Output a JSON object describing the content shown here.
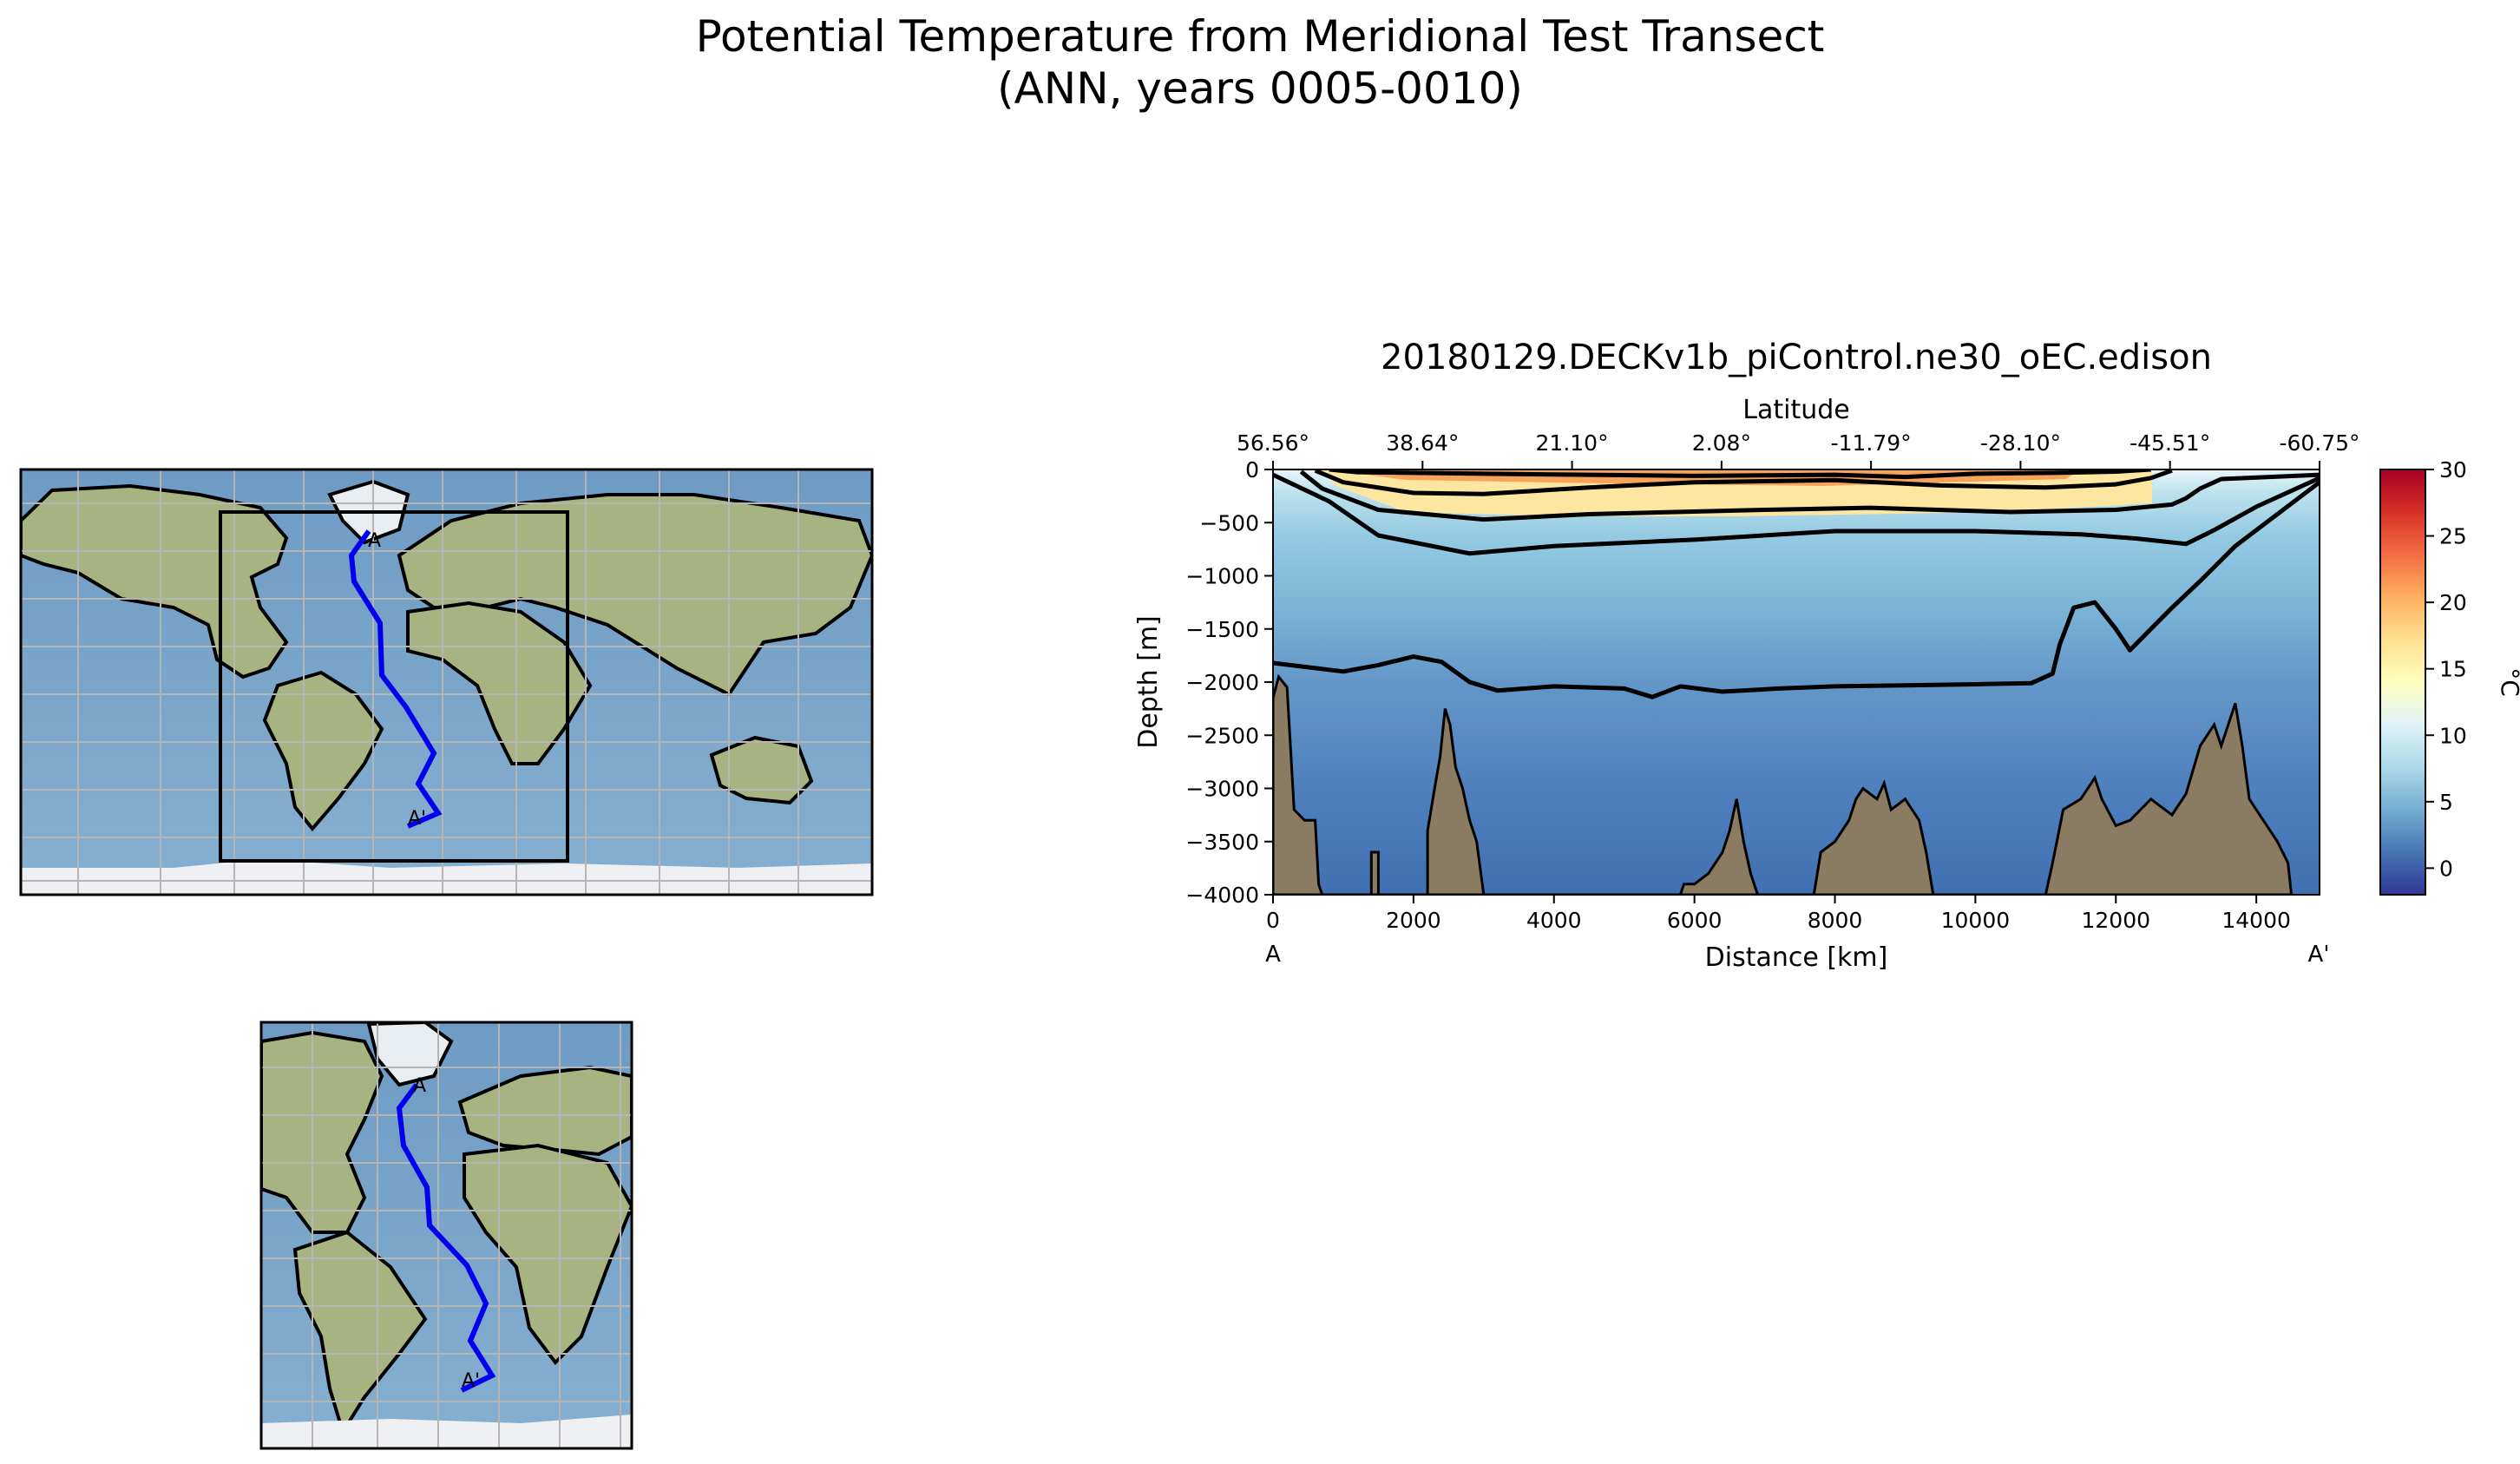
{
  "figure": {
    "title_line1": "Potential Temperature from Meridional Test Transect",
    "title_line2": "(ANN, years 0005-0010)"
  },
  "maps": {
    "global_map": {
      "label_start": "A",
      "label_end": "A'"
    },
    "inset_map": {
      "label_start": "A",
      "label_end": "A'"
    },
    "transect_color": "#0000ee",
    "ocean_color": "#7ea7c9",
    "land_color": "#9fae7e"
  },
  "chart_data": {
    "type": "heatmap",
    "title": "20180129.DECKv1b_piControl.ne30_oEC.edison",
    "xlabel": "Distance [km]",
    "ylabel": "Depth [m]",
    "top_axis_label": "Latitude",
    "xlim": [
      0,
      14900
    ],
    "ylim": [
      -4000,
      0
    ],
    "x_ticks": [
      0,
      2000,
      4000,
      6000,
      8000,
      10000,
      12000,
      14000
    ],
    "x_tick_labels": [
      "0",
      "2000",
      "4000",
      "6000",
      "8000",
      "10000",
      "12000",
      "14000"
    ],
    "y_ticks": [
      0,
      -500,
      -1000,
      -1500,
      -2000,
      -2500,
      -3000,
      -3500,
      -4000
    ],
    "y_tick_labels": [
      "0",
      "−500",
      "−1000",
      "−1500",
      "−2000",
      "−2500",
      "−3000",
      "−3500",
      "−4000"
    ],
    "top_ticks": [
      0,
      2129,
      4257,
      6386,
      8514,
      10643,
      12771,
      14900
    ],
    "top_tick_labels": [
      "56.56°",
      "38.64°",
      "21.10°",
      "2.08°",
      "-11.79°",
      "-28.10°",
      "-45.51°",
      "-60.75°"
    ],
    "endpoint_labels": {
      "start": "A",
      "end": "A'"
    },
    "colorbar": {
      "label": "°C",
      "vmin": -2,
      "vmax": 30,
      "ticks": [
        0,
        5,
        10,
        15,
        20,
        25,
        30
      ],
      "tick_labels": [
        "0",
        "5",
        "10",
        "15",
        "20",
        "25",
        "30"
      ],
      "colormap": [
        "#313695",
        "#4575b4",
        "#74add1",
        "#abd9e9",
        "#e0f3f8",
        "#ffffbf",
        "#fee090",
        "#fdae61",
        "#f46d43",
        "#d73027",
        "#a50026"
      ]
    },
    "contours": [
      {
        "level": 20,
        "points": [
          [
            800,
            0
          ],
          [
            1200,
            -25
          ],
          [
            3000,
            -40
          ],
          [
            6000,
            -60
          ],
          [
            8000,
            -50
          ],
          [
            9000,
            -70
          ],
          [
            10000,
            -40
          ],
          [
            11200,
            -30
          ],
          [
            12000,
            -20
          ],
          [
            12500,
            0
          ]
        ]
      },
      {
        "level": 15,
        "points": [
          [
            600,
            -10
          ],
          [
            1000,
            -120
          ],
          [
            2000,
            -220
          ],
          [
            3000,
            -230
          ],
          [
            4500,
            -170
          ],
          [
            6000,
            -120
          ],
          [
            8000,
            -100
          ],
          [
            9500,
            -150
          ],
          [
            11000,
            -170
          ],
          [
            12000,
            -140
          ],
          [
            12500,
            -80
          ],
          [
            12800,
            -10
          ]
        ]
      },
      {
        "level": 10,
        "points": [
          [
            400,
            -20
          ],
          [
            700,
            -180
          ],
          [
            1500,
            -380
          ],
          [
            3000,
            -470
          ],
          [
            4500,
            -420
          ],
          [
            7000,
            -380
          ],
          [
            8500,
            -360
          ],
          [
            10500,
            -400
          ],
          [
            12000,
            -380
          ],
          [
            12800,
            -330
          ],
          [
            13000,
            -270
          ],
          [
            13200,
            -180
          ],
          [
            13500,
            -90
          ],
          [
            14900,
            -50
          ]
        ]
      },
      {
        "level": 5,
        "points": [
          [
            0,
            -50
          ],
          [
            800,
            -300
          ],
          [
            1500,
            -620
          ],
          [
            2800,
            -790
          ],
          [
            4000,
            -720
          ],
          [
            6000,
            -660
          ],
          [
            8000,
            -580
          ],
          [
            10000,
            -580
          ],
          [
            11500,
            -610
          ],
          [
            12300,
            -650
          ],
          [
            13000,
            -700
          ],
          [
            13400,
            -570
          ],
          [
            14000,
            -350
          ],
          [
            14900,
            -80
          ]
        ]
      },
      {
        "level": 3,
        "points": [
          [
            0,
            -1820
          ],
          [
            500,
            -1860
          ],
          [
            1000,
            -1900
          ],
          [
            1500,
            -1840
          ],
          [
            2000,
            -1760
          ],
          [
            2400,
            -1810
          ],
          [
            2800,
            -2000
          ],
          [
            3200,
            -2080
          ],
          [
            4000,
            -2040
          ],
          [
            5000,
            -2060
          ],
          [
            5400,
            -2140
          ],
          [
            5800,
            -2040
          ],
          [
            6400,
            -2090
          ],
          [
            7200,
            -2060
          ],
          [
            8000,
            -2040
          ],
          [
            9000,
            -2030
          ],
          [
            10000,
            -2020
          ],
          [
            10800,
            -2010
          ],
          [
            11100,
            -1920
          ],
          [
            11200,
            -1650
          ],
          [
            11400,
            -1300
          ],
          [
            11700,
            -1250
          ],
          [
            12000,
            -1500
          ],
          [
            12200,
            -1700
          ],
          [
            12500,
            -1500
          ],
          [
            12800,
            -1300
          ],
          [
            13200,
            -1050
          ],
          [
            13700,
            -720
          ],
          [
            14300,
            -420
          ],
          [
            14900,
            -120
          ]
        ]
      }
    ],
    "seafloor": [
      [
        0,
        -4000
      ],
      [
        0,
        -2150
      ],
      [
        80,
        -1950
      ],
      [
        200,
        -2050
      ],
      [
        300,
        -3200
      ],
      [
        450,
        -3300
      ],
      [
        600,
        -3300
      ],
      [
        650,
        -3900
      ],
      [
        700,
        -4000
      ],
      [
        1400,
        -4000
      ],
      [
        1400,
        -3600
      ],
      [
        1500,
        -3600
      ],
      [
        1500,
        -4000
      ],
      [
        2200,
        -4000
      ],
      [
        2200,
        -3400
      ],
      [
        2300,
        -3000
      ],
      [
        2380,
        -2700
      ],
      [
        2450,
        -2250
      ],
      [
        2520,
        -2400
      ],
      [
        2600,
        -2800
      ],
      [
        2700,
        -3000
      ],
      [
        2800,
        -3300
      ],
      [
        2900,
        -3500
      ],
      [
        3000,
        -4000
      ],
      [
        5800,
        -4000
      ],
      [
        5850,
        -3900
      ],
      [
        6000,
        -3900
      ],
      [
        6200,
        -3800
      ],
      [
        6400,
        -3600
      ],
      [
        6500,
        -3400
      ],
      [
        6600,
        -3100
      ],
      [
        6700,
        -3500
      ],
      [
        6800,
        -3800
      ],
      [
        6900,
        -4000
      ],
      [
        7700,
        -4000
      ],
      [
        7800,
        -3600
      ],
      [
        8000,
        -3500
      ],
      [
        8200,
        -3300
      ],
      [
        8300,
        -3100
      ],
      [
        8400,
        -3000
      ],
      [
        8600,
        -3100
      ],
      [
        8700,
        -2950
      ],
      [
        8800,
        -3200
      ],
      [
        9000,
        -3100
      ],
      [
        9200,
        -3300
      ],
      [
        9300,
        -3600
      ],
      [
        9400,
        -4000
      ],
      [
        11000,
        -4000
      ],
      [
        11100,
        -3700
      ],
      [
        11250,
        -3200
      ],
      [
        11500,
        -3100
      ],
      [
        11700,
        -2900
      ],
      [
        11800,
        -3100
      ],
      [
        12000,
        -3350
      ],
      [
        12200,
        -3300
      ],
      [
        12500,
        -3100
      ],
      [
        12800,
        -3250
      ],
      [
        13000,
        -3050
      ],
      [
        13200,
        -2600
      ],
      [
        13400,
        -2400
      ],
      [
        13500,
        -2600
      ],
      [
        13600,
        -2400
      ],
      [
        13700,
        -2200
      ],
      [
        13800,
        -2600
      ],
      [
        13900,
        -3100
      ],
      [
        14100,
        -3300
      ],
      [
        14300,
        -3500
      ],
      [
        14450,
        -3700
      ],
      [
        14500,
        -4000
      ]
    ]
  }
}
